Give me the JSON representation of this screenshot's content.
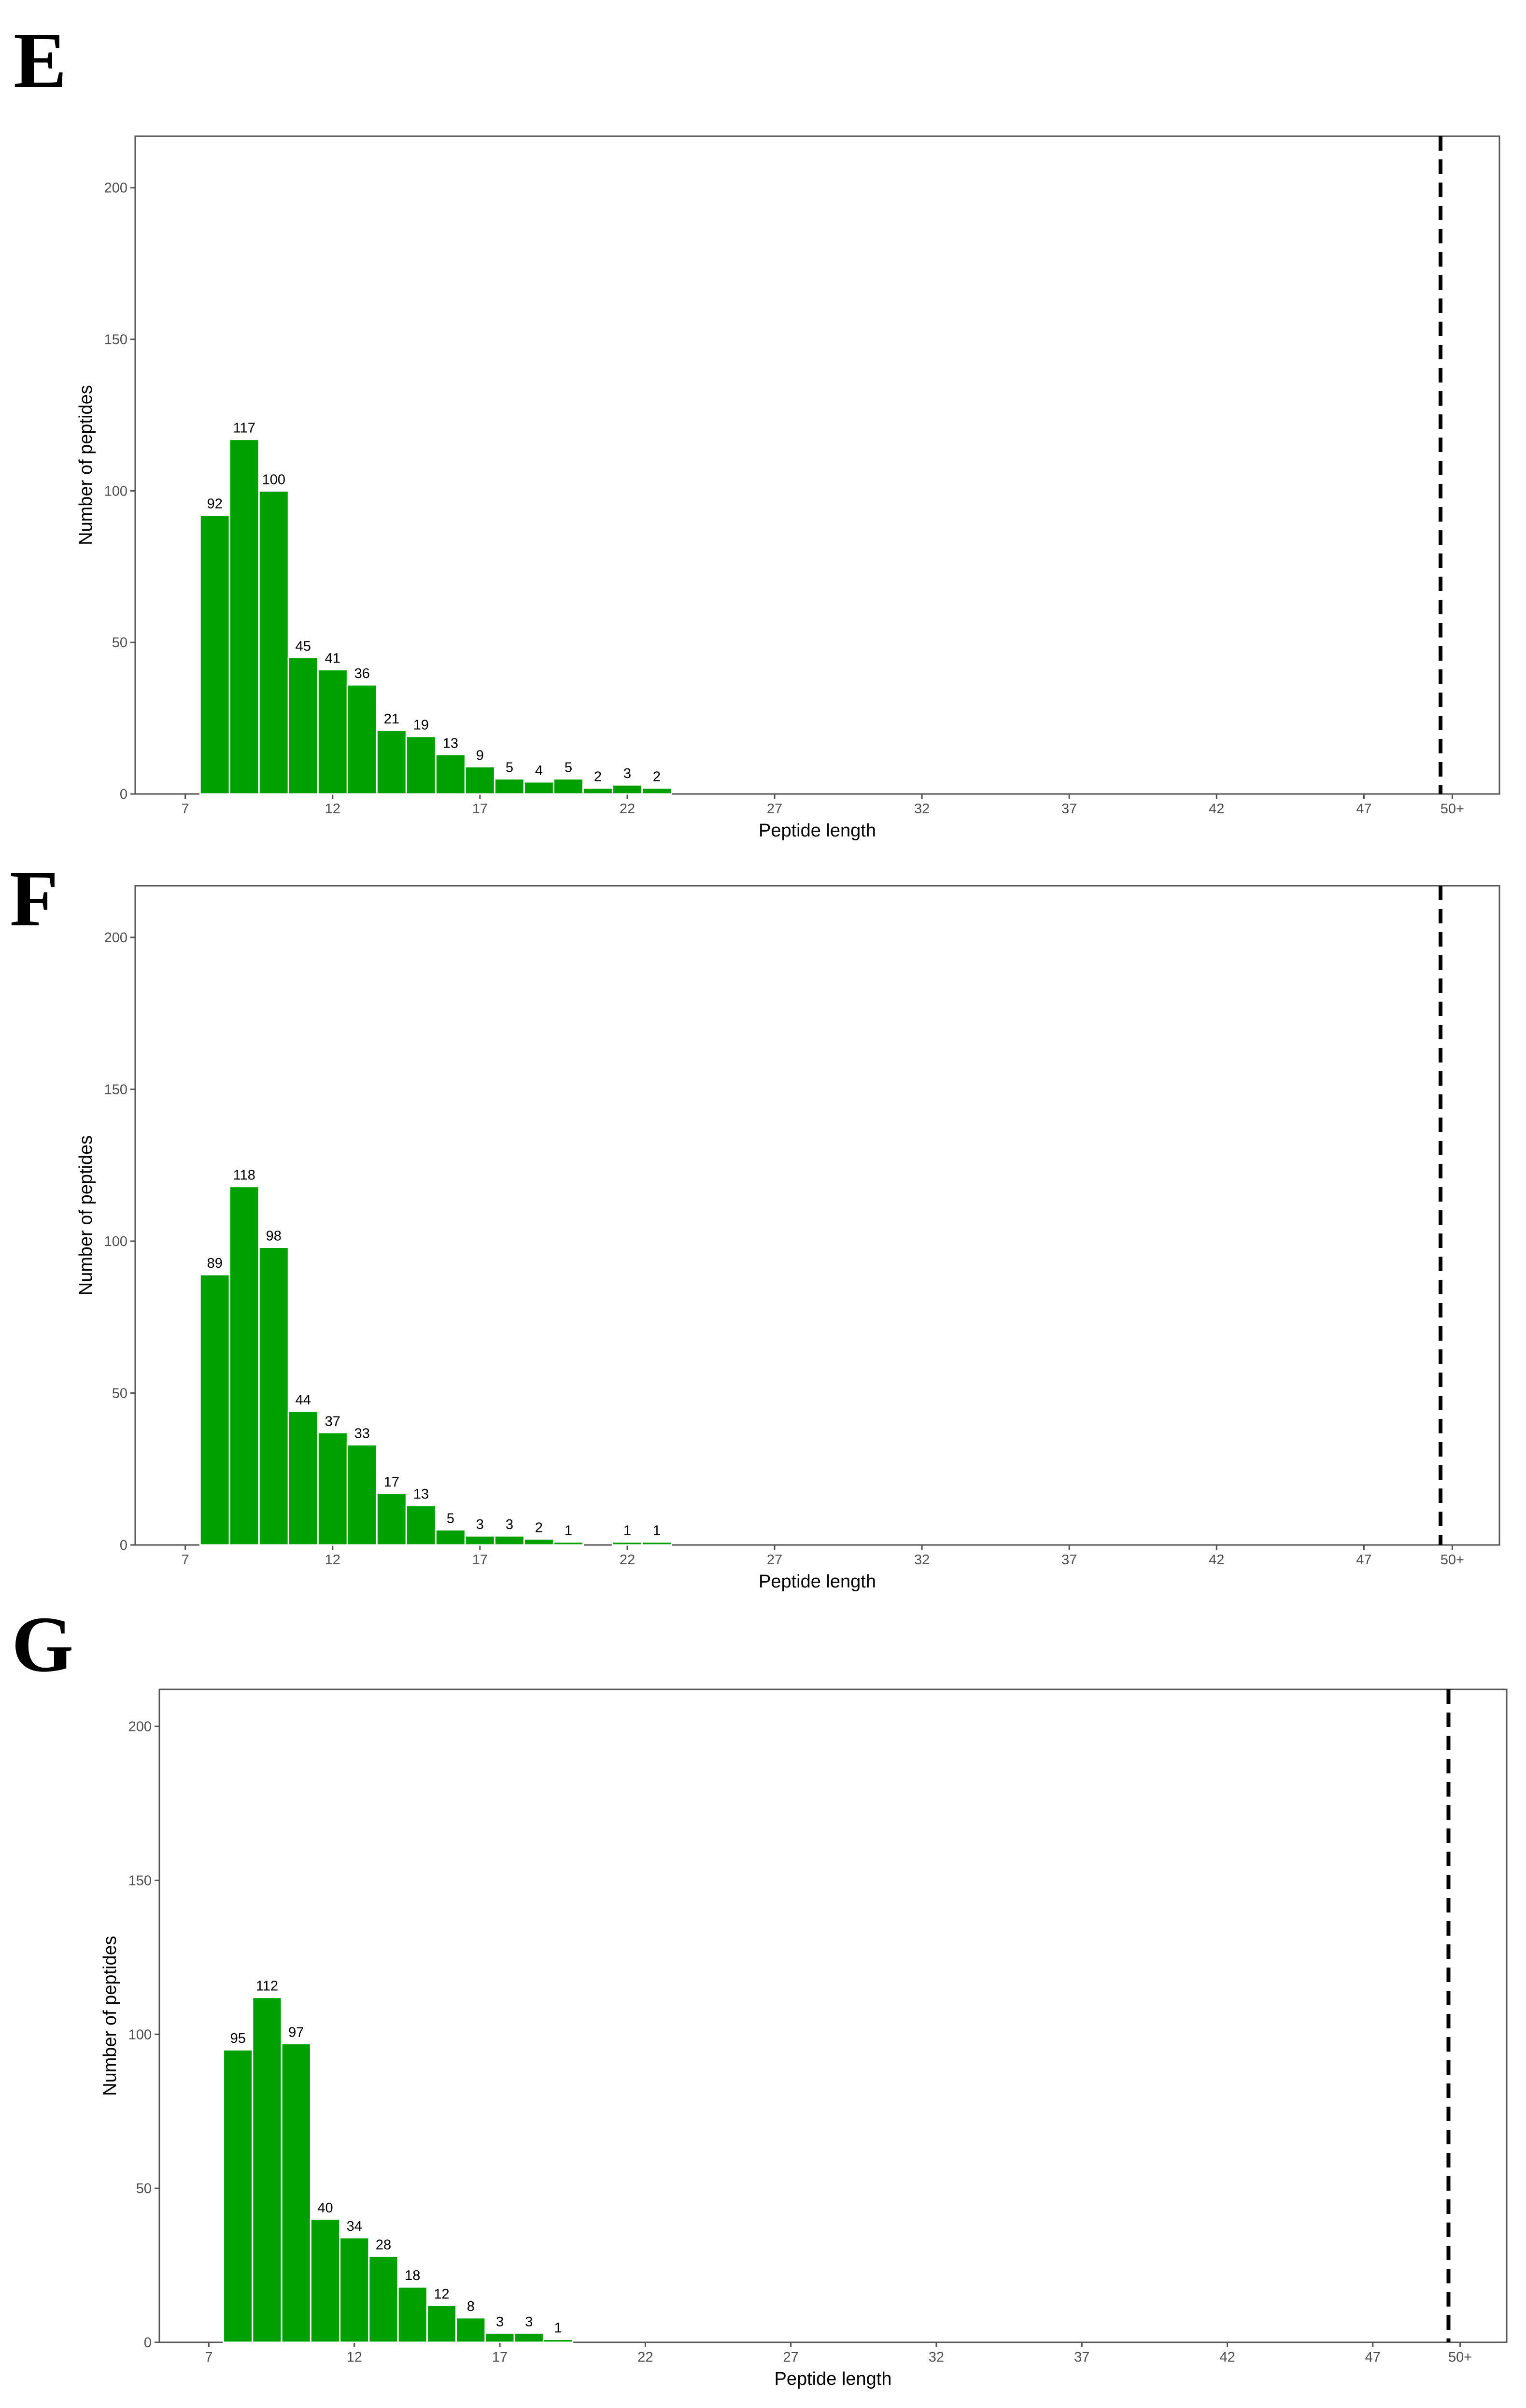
{
  "chart_data": [
    {
      "panel": "E",
      "type": "bar",
      "xlabel": "Peptide length",
      "ylabel": "Number of peptides",
      "xticks": [
        "7",
        "12",
        "17",
        "22",
        "27",
        "32",
        "37",
        "42",
        "47",
        "50+"
      ],
      "yticks": [
        "0",
        "50",
        "100",
        "150",
        "200"
      ],
      "ylim": [
        0,
        217
      ],
      "x": [
        8,
        9,
        10,
        11,
        12,
        13,
        14,
        15,
        16,
        17,
        18,
        19,
        20,
        21,
        22,
        23
      ],
      "values": [
        92,
        117,
        100,
        45,
        41,
        36,
        21,
        19,
        13,
        9,
        5,
        4,
        5,
        2,
        3,
        2
      ],
      "labels": [
        "92",
        "117",
        "100",
        "45",
        "41",
        "36",
        "21",
        "19",
        "13",
        "9",
        "5",
        "4",
        "5",
        "2",
        "3",
        "2"
      ],
      "vline_x": 49.6,
      "grid": false,
      "bar_color": "#00a000"
    },
    {
      "panel": "F",
      "type": "bar",
      "xlabel": "Peptide length",
      "ylabel": "Number of peptides",
      "xticks": [
        "7",
        "12",
        "17",
        "22",
        "27",
        "32",
        "37",
        "42",
        "47",
        "50+"
      ],
      "yticks": [
        "0",
        "50",
        "100",
        "150",
        "200"
      ],
      "ylim": [
        0,
        217
      ],
      "x": [
        8,
        9,
        10,
        11,
        12,
        13,
        14,
        15,
        16,
        17,
        18,
        19,
        20,
        22,
        23
      ],
      "values": [
        89,
        118,
        98,
        44,
        37,
        33,
        17,
        13,
        5,
        3,
        3,
        2,
        1,
        1,
        1
      ],
      "labels": [
        "89",
        "118",
        "98",
        "44",
        "37",
        "33",
        "17",
        "13",
        "5",
        "3",
        "3",
        "2",
        "1",
        "1",
        "1"
      ],
      "vline_x": 49.6,
      "grid": false,
      "bar_color": "#00a000"
    },
    {
      "panel": "G",
      "type": "bar",
      "xlabel": "Peptide length",
      "ylabel": "Number of peptides",
      "xticks": [
        "7",
        "12",
        "17",
        "22",
        "27",
        "32",
        "37",
        "42",
        "47",
        "50+"
      ],
      "yticks": [
        "0",
        "50",
        "100",
        "150",
        "200"
      ],
      "ylim": [
        0,
        212
      ],
      "x": [
        8,
        9,
        10,
        11,
        12,
        13,
        14,
        15,
        16,
        17,
        18,
        19
      ],
      "values": [
        95,
        112,
        97,
        40,
        34,
        28,
        18,
        12,
        8,
        3,
        3,
        1
      ],
      "labels": [
        "95",
        "112",
        "97",
        "40",
        "34",
        "28",
        "18",
        "12",
        "8",
        "3",
        "3",
        "1"
      ],
      "vline_x": 49.6,
      "grid": false,
      "bar_color": "#00a000"
    }
  ]
}
